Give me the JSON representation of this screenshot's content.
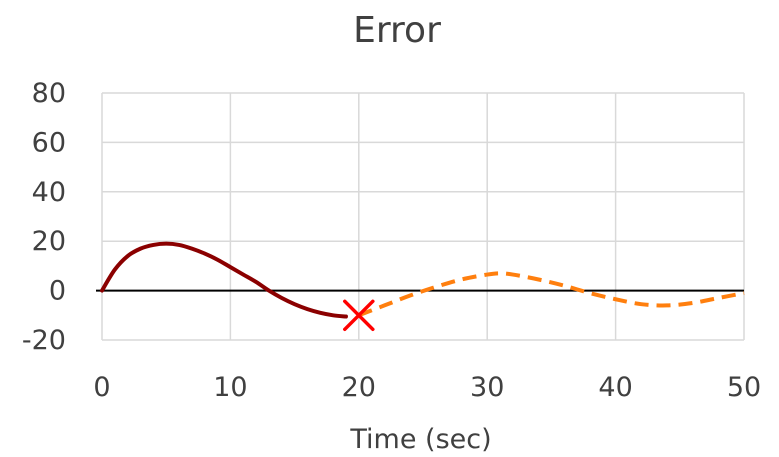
{
  "chart_data": {
    "type": "line",
    "title": "Error",
    "xlabel": "Time (sec)",
    "ylabel": "",
    "xlim": [
      0,
      50
    ],
    "ylim": [
      -20,
      80
    ],
    "x_ticks": [
      0,
      10,
      20,
      30,
      40,
      50
    ],
    "y_ticks": [
      -20,
      0,
      20,
      40,
      60,
      80
    ],
    "x_tick_labels": [
      "0",
      "10",
      "20",
      "30",
      "40",
      "50"
    ],
    "y_tick_labels": [
      "-20",
      "0",
      "20",
      "40",
      "60",
      "80"
    ],
    "grid": true,
    "legend": "none",
    "zero_line": true,
    "series": [
      {
        "style": "solid",
        "color": "#8b0000",
        "x": [
          0,
          1,
          2,
          3,
          4,
          5,
          6,
          7,
          8,
          9,
          10,
          11,
          12,
          13,
          14,
          15,
          16,
          17,
          18,
          19
        ],
        "y": [
          0,
          8.5,
          14,
          17,
          18.5,
          19,
          18.5,
          17,
          15,
          12.5,
          9.5,
          6.5,
          3.5,
          0,
          -3,
          -5.5,
          -7.5,
          -9,
          -10,
          -10.5
        ]
      },
      {
        "style": "dashed",
        "color": "#ff7f0e",
        "x": [
          20,
          22,
          24,
          26,
          28,
          30,
          31,
          32,
          34,
          36,
          38,
          40,
          42,
          44,
          46,
          48,
          50
        ],
        "y": [
          -10,
          -6,
          -2,
          1.5,
          4.5,
          6.5,
          7,
          6.5,
          4.5,
          2,
          -1,
          -3.5,
          -5.5,
          -6,
          -5,
          -3,
          -1
        ]
      }
    ],
    "marker": {
      "shape": "x",
      "color": "#ff0000",
      "x": 20,
      "y": -10
    }
  }
}
